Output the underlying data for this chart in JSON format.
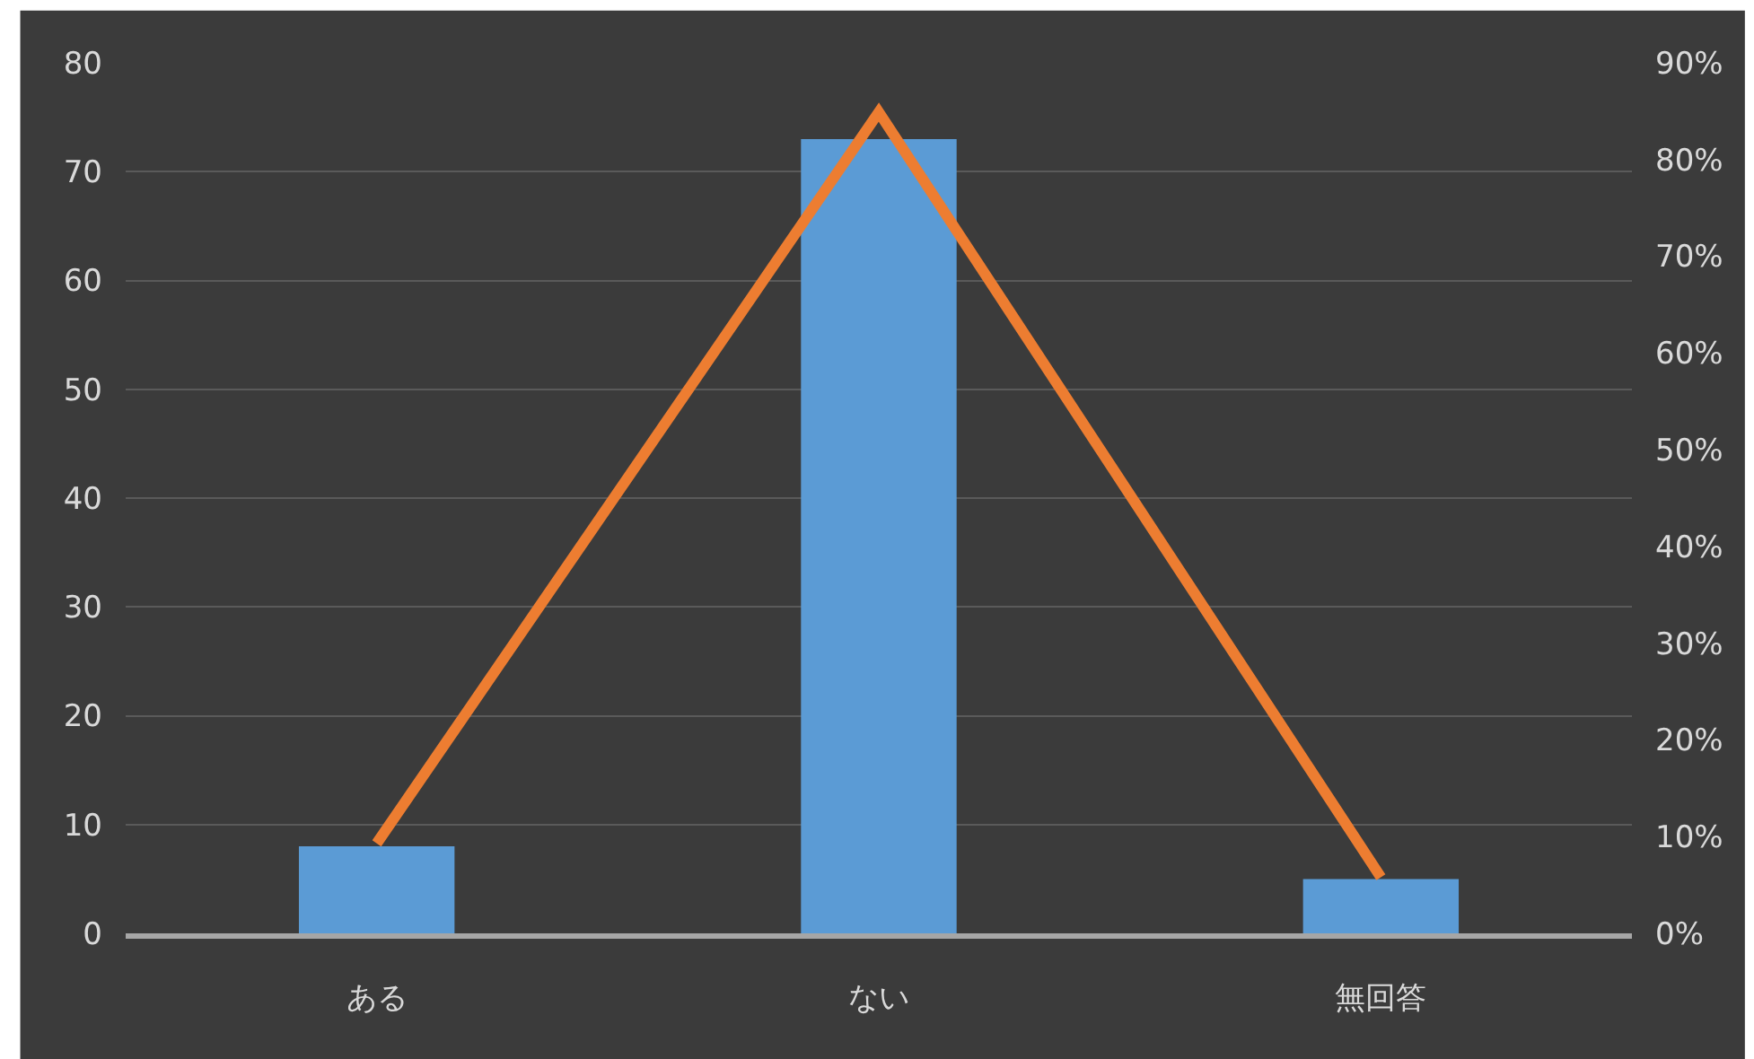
{
  "chart_data": {
    "type": "bar",
    "categories": [
      "ある",
      "ない",
      "無回答"
    ],
    "series": [
      {
        "color": "#5b9bd5",
        "values": [
          8,
          73,
          5
        ]
      },
      {
        "type": "line",
        "color": "#ed7d31",
        "axis": "y2",
        "values": [
          9.3,
          84.9,
          5.8
        ]
      }
    ],
    "ylim": [
      0,
      80
    ],
    "yticks": [
      0,
      10,
      20,
      30,
      40,
      50,
      60,
      70,
      80
    ],
    "y2lim": [
      0,
      90
    ],
    "y2ticks": [
      {
        "value": 0,
        "label": "0%"
      },
      {
        "value": 10,
        "label": "10%"
      },
      {
        "value": 20,
        "label": "20%"
      },
      {
        "value": 30,
        "label": "30%"
      },
      {
        "value": 40,
        "label": "40%"
      },
      {
        "value": 50,
        "label": "50%"
      },
      {
        "value": 60,
        "label": "60%"
      },
      {
        "value": 70,
        "label": "70%"
      },
      {
        "value": 80,
        "label": "80%"
      },
      {
        "value": 90,
        "label": "90%"
      }
    ],
    "grid": "y",
    "marker": "none",
    "line_style": "solid"
  }
}
